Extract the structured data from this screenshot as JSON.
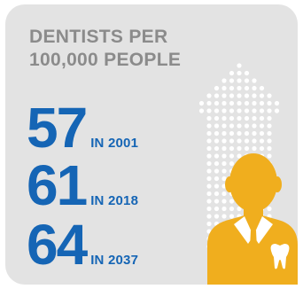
{
  "title": {
    "line1": "DENTISTS PER",
    "line2": "100,000 PEOPLE"
  },
  "stats": [
    {
      "value": "57",
      "label": "IN 2001"
    },
    {
      "value": "61",
      "label": "IN 2018"
    },
    {
      "value": "64",
      "label": "IN 2037"
    }
  ],
  "colors": {
    "background": "#e3e3e3",
    "title": "#8b8b8b",
    "accent": "#1565b5",
    "figure": "#f0ae1e",
    "dots": "#ffffff"
  },
  "icons": [
    "upward-arrow-dot-graphic",
    "dentist-person-icon",
    "tooth-icon"
  ]
}
